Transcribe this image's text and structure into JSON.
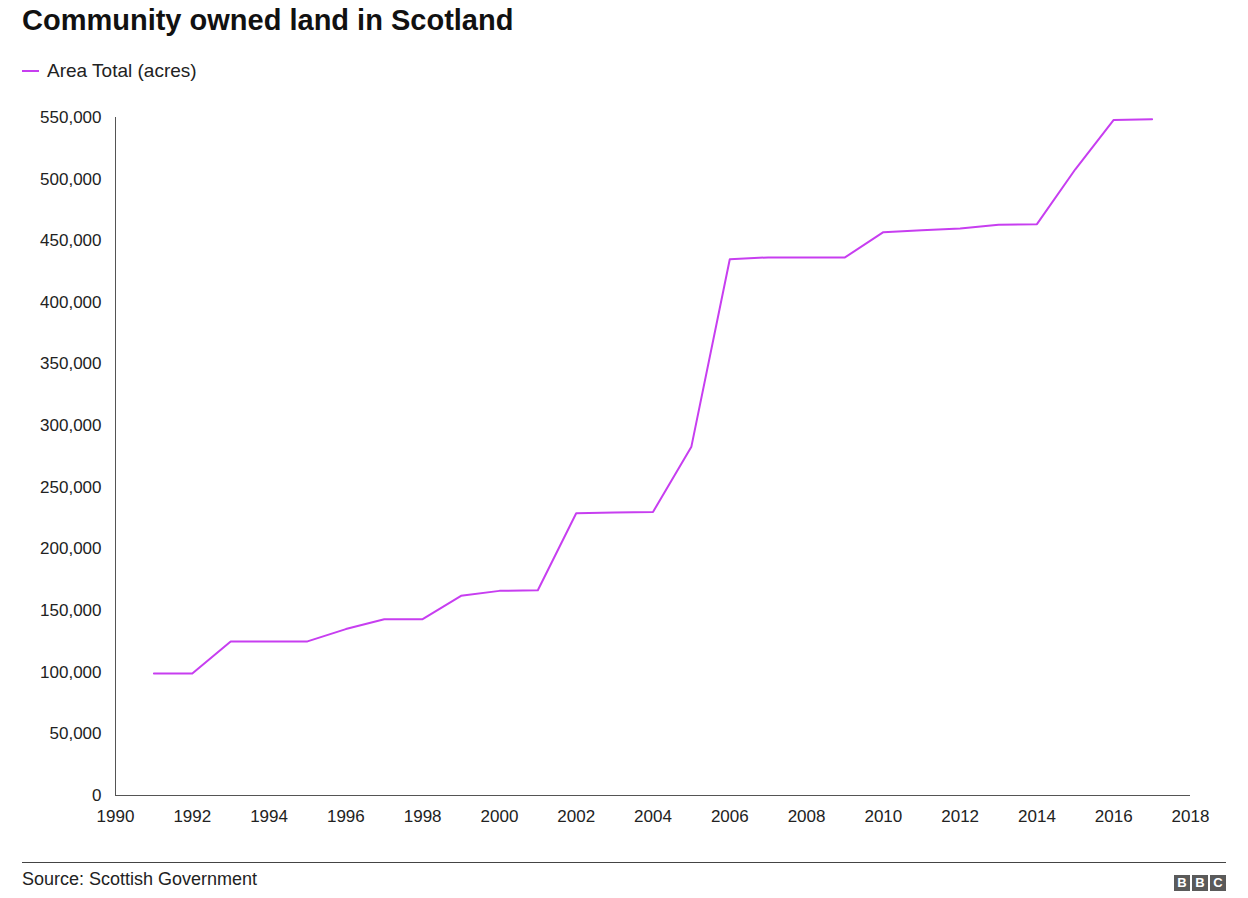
{
  "chart_data": {
    "type": "line",
    "title": "Community owned land in Scotland",
    "source": "Source: Scottish Government",
    "logo": "BBC",
    "legend": "top-left",
    "grid": false,
    "x": [
      1991,
      1992,
      1993,
      1994,
      1995,
      1996,
      1997,
      1998,
      1999,
      2000,
      2001,
      2002,
      2003,
      2004,
      2005,
      2006,
      2007,
      2008,
      2009,
      2010,
      2011,
      2012,
      2013,
      2014,
      2015,
      2016,
      2017
    ],
    "series": [
      {
        "name": "Area Total (acres)",
        "color": "#c73ef0",
        "values": [
          99000,
          99000,
          125000,
          125000,
          125000,
          135000,
          143000,
          143000,
          162000,
          166000,
          166500,
          229000,
          229500,
          230000,
          283000,
          435000,
          436500,
          436500,
          436500,
          457000,
          458500,
          460000,
          463000,
          463500,
          508000,
          548000,
          548500
        ]
      }
    ],
    "xlim": [
      1990,
      2018
    ],
    "xticks": [
      1990,
      1992,
      1994,
      1996,
      1998,
      2000,
      2002,
      2004,
      2006,
      2008,
      2010,
      2012,
      2014,
      2016,
      2018
    ],
    "ylim": [
      0,
      550000
    ],
    "yticks": [
      0,
      {
        "value": 50000,
        "label": "50,000"
      },
      {
        "value": 100000,
        "label": "100,000"
      },
      {
        "value": 150000,
        "label": "150,000"
      },
      {
        "value": 200000,
        "label": "200,000"
      },
      {
        "value": 250000,
        "label": "250,000"
      },
      {
        "value": 300000,
        "label": "300,000"
      },
      {
        "value": 350000,
        "label": "350,000"
      },
      {
        "value": 400000,
        "label": "400,000"
      },
      {
        "value": 450000,
        "label": "450,000"
      },
      {
        "value": 500000,
        "label": "500,000"
      },
      {
        "value": 550000,
        "label": "550,000"
      }
    ]
  }
}
